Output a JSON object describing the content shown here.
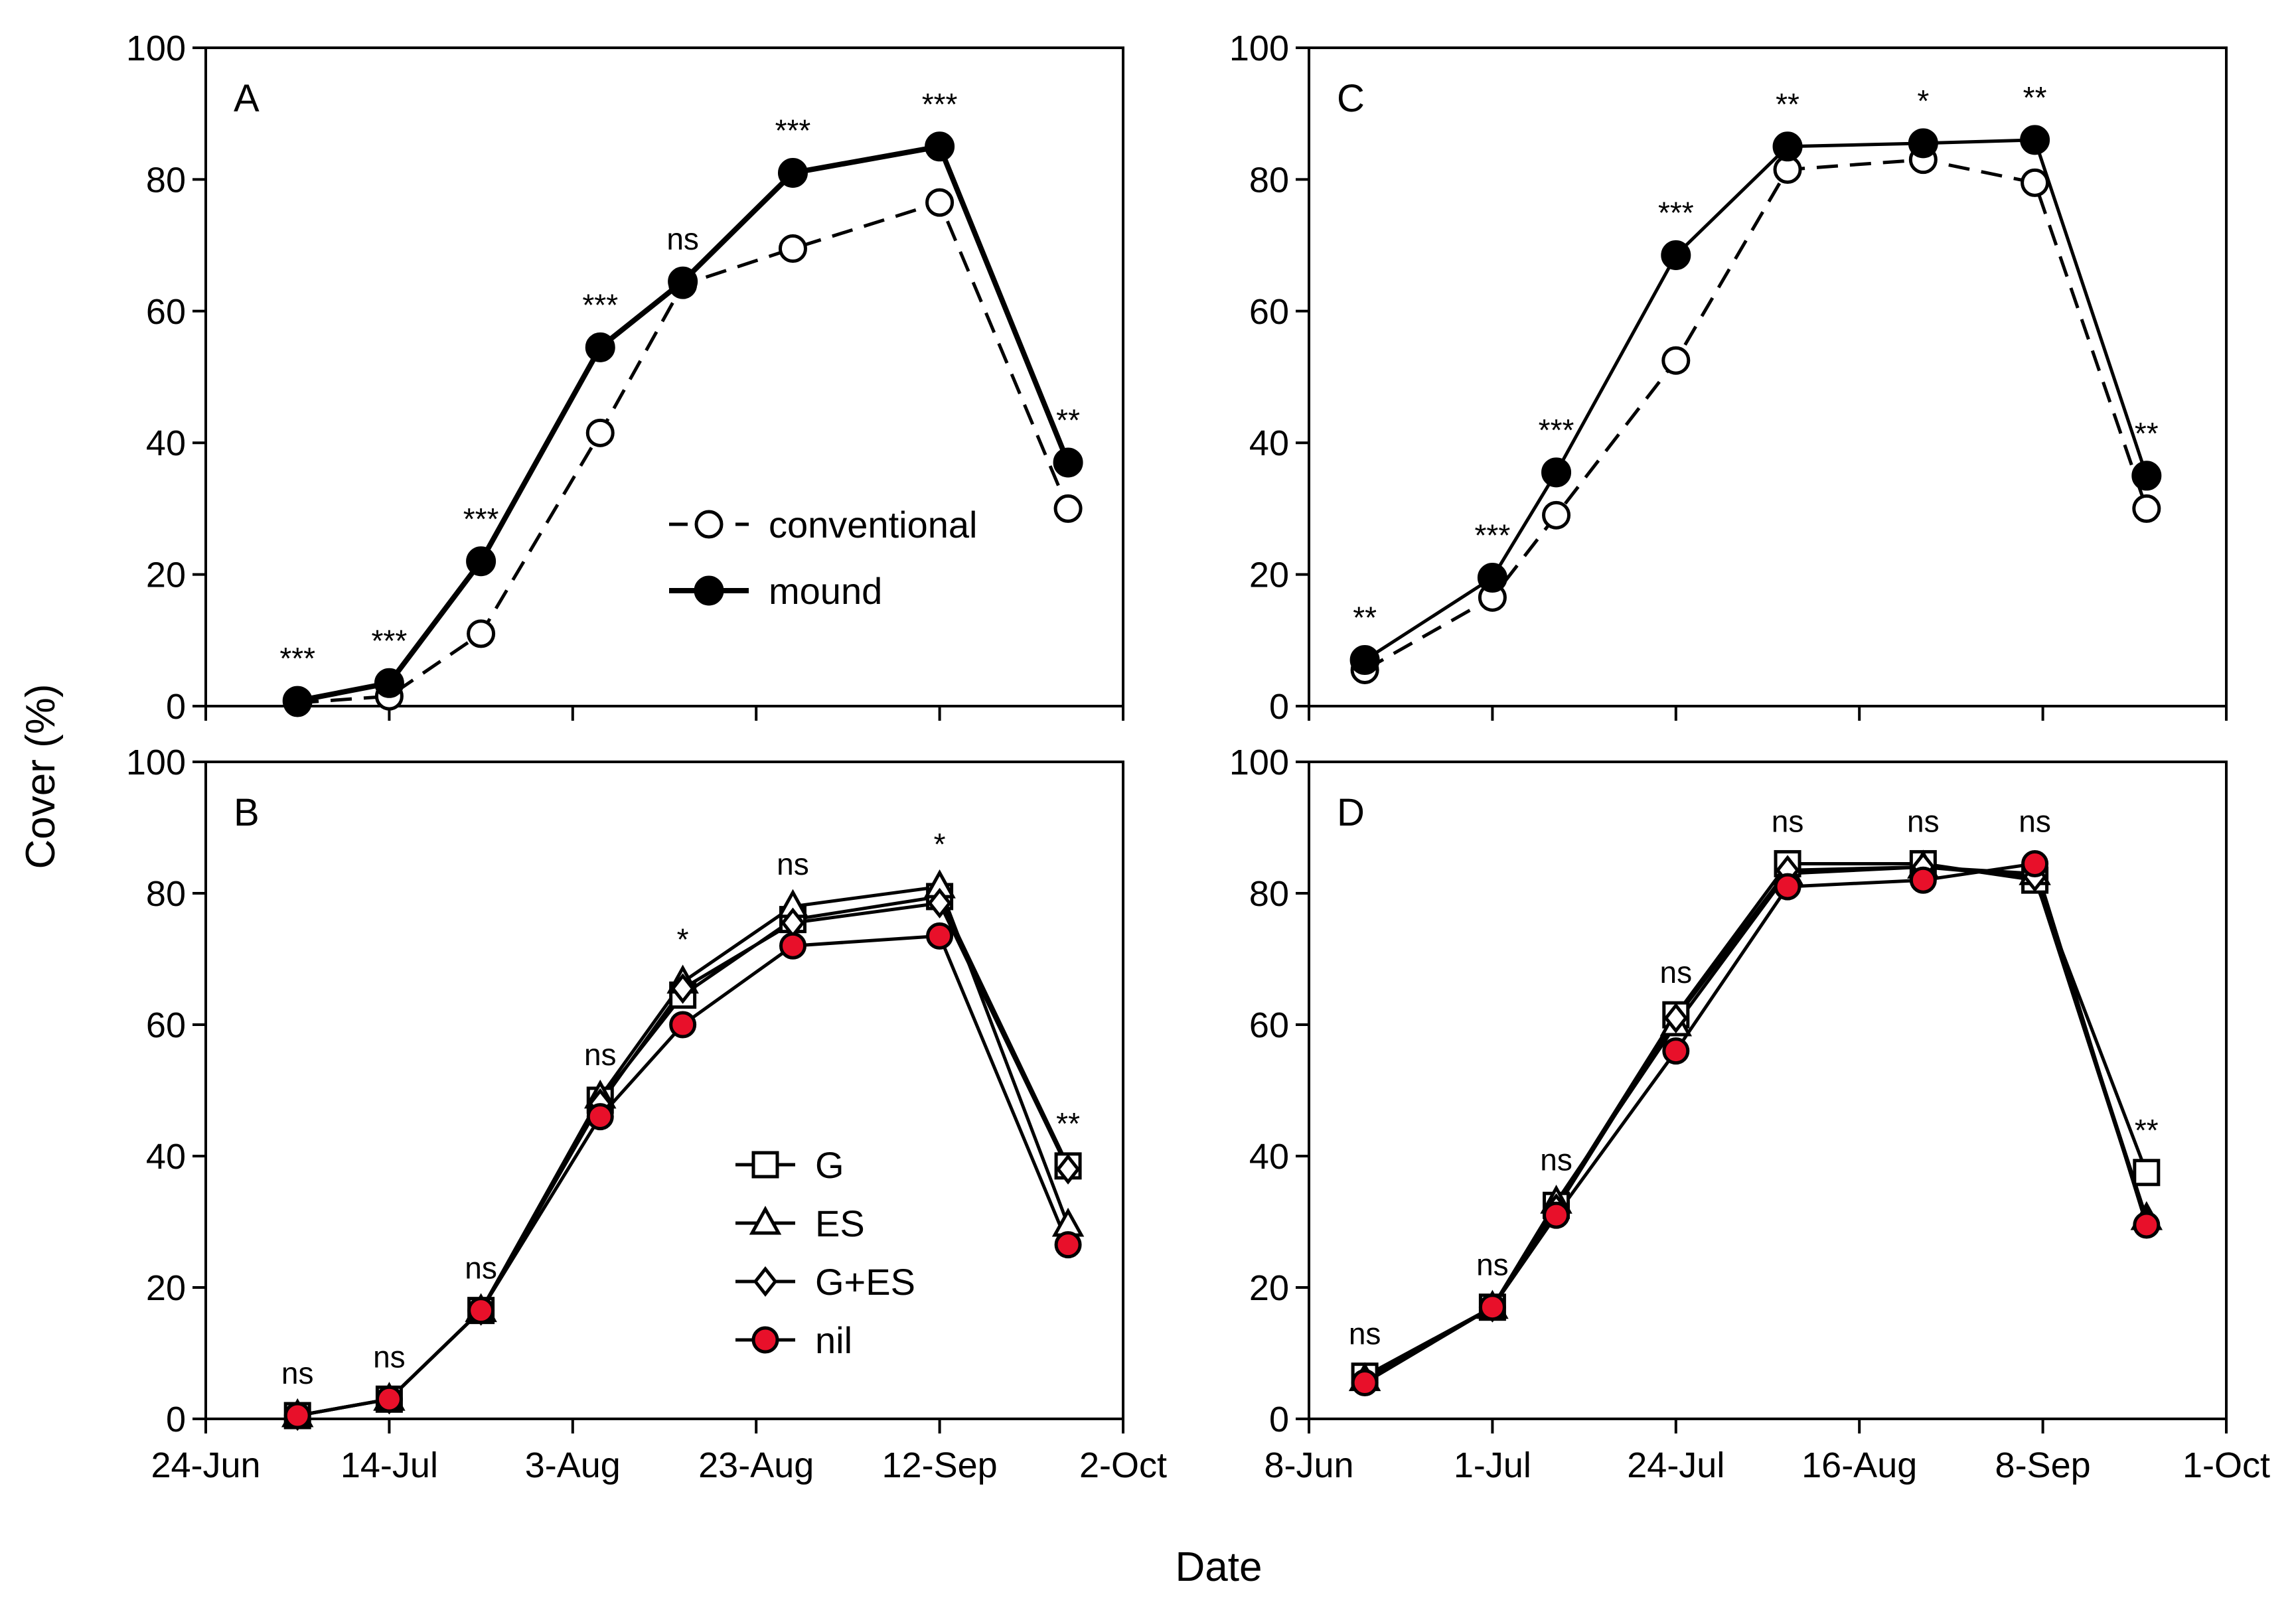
{
  "figure": {
    "ylabel": "Cover (%)",
    "xlabel": "Date"
  },
  "chart_data": [
    {
      "panel": "A",
      "type": "line",
      "ylim": [
        0,
        100
      ],
      "yticks": [
        0,
        20,
        40,
        60,
        80,
        100
      ],
      "xdomain": [
        "2021-06-24",
        "2021-10-02"
      ],
      "xticks": [
        "24-Jun",
        "14-Jul",
        "3-Aug",
        "23-Aug",
        "12-Sep",
        "2-Oct"
      ],
      "x": [
        "2021-07-04",
        "2021-07-14",
        "2021-07-24",
        "2021-08-06",
        "2021-08-15",
        "2021-08-27",
        "2021-09-12",
        "2021-09-26"
      ],
      "significance": [
        "***",
        "***",
        "***",
        "***",
        "ns",
        "***",
        "***",
        "**"
      ],
      "series": [
        {
          "name": "conventional",
          "marker": "circle-open",
          "line": "dashed",
          "values": [
            0.5,
            1.5,
            11,
            41.5,
            64,
            69.5,
            76.5,
            30
          ]
        },
        {
          "name": "mound",
          "marker": "circle-filled",
          "line": "solid-thick",
          "values": [
            0.8,
            3.5,
            22,
            54.5,
            64.5,
            81,
            85,
            37
          ]
        }
      ],
      "legend": {
        "position": "center-right"
      }
    },
    {
      "panel": "B",
      "type": "line",
      "ylim": [
        0,
        100
      ],
      "yticks": [
        0,
        20,
        40,
        60,
        80,
        100
      ],
      "xdomain": [
        "2021-06-24",
        "2021-10-02"
      ],
      "xticks": [
        "24-Jun",
        "14-Jul",
        "3-Aug",
        "23-Aug",
        "12-Sep",
        "2-Oct"
      ],
      "x": [
        "2021-07-04",
        "2021-07-14",
        "2021-07-24",
        "2021-08-06",
        "2021-08-15",
        "2021-08-27",
        "2021-09-12",
        "2021-09-26"
      ],
      "significance": [
        "ns",
        "ns",
        "ns",
        "ns",
        "*",
        "ns",
        "*",
        "**"
      ],
      "series": [
        {
          "name": "G",
          "marker": "square-open",
          "values": [
            0.5,
            3,
            16.5,
            48.5,
            64.5,
            76,
            79.5,
            38.5
          ]
        },
        {
          "name": "ES",
          "marker": "triangle-open",
          "values": [
            0.5,
            3,
            16.5,
            49,
            66.5,
            78,
            81,
            29.5
          ]
        },
        {
          "name": "G+ES",
          "marker": "diamond-open",
          "values": [
            0.5,
            3,
            16.5,
            48,
            65.5,
            75.5,
            78.5,
            38
          ]
        },
        {
          "name": "nil",
          "marker": "circle-red",
          "values": [
            0.5,
            3,
            16.5,
            46,
            60,
            72,
            73.5,
            26.5
          ]
        }
      ],
      "legend": {
        "position": "bottom-center"
      }
    },
    {
      "panel": "C",
      "type": "line",
      "ylim": [
        0,
        100
      ],
      "yticks": [
        0,
        20,
        40,
        60,
        80,
        100
      ],
      "xdomain": [
        "2021-06-08",
        "2021-10-01"
      ],
      "xticks": [
        "8-Jun",
        "1-Jul",
        "24-Jul",
        "16-Aug",
        "8-Sep",
        "1-Oct"
      ],
      "x": [
        "2021-06-15",
        "2021-07-01",
        "2021-07-09",
        "2021-07-24",
        "2021-08-07",
        "2021-08-24",
        "2021-09-07",
        "2021-09-21"
      ],
      "significance": [
        "**",
        "***",
        "***",
        "***",
        "**",
        "*",
        "**",
        "**"
      ],
      "series": [
        {
          "name": "conventional",
          "marker": "circle-open",
          "line": "dashed",
          "values": [
            5.5,
            16.5,
            29,
            52.5,
            81.5,
            83,
            79.5,
            30
          ]
        },
        {
          "name": "mound",
          "marker": "circle-filled",
          "line": "solid",
          "values": [
            7,
            19.5,
            35.5,
            68.5,
            85,
            85.5,
            86,
            35
          ]
        }
      ]
    },
    {
      "panel": "D",
      "type": "line",
      "ylim": [
        0,
        100
      ],
      "yticks": [
        0,
        20,
        40,
        60,
        80,
        100
      ],
      "xdomain": [
        "2021-06-08",
        "2021-10-01"
      ],
      "xticks": [
        "8-Jun",
        "1-Jul",
        "24-Jul",
        "16-Aug",
        "8-Sep",
        "1-Oct"
      ],
      "x": [
        "2021-06-15",
        "2021-07-01",
        "2021-07-09",
        "2021-07-24",
        "2021-08-07",
        "2021-08-24",
        "2021-09-07",
        "2021-09-21"
      ],
      "significance": [
        "ns",
        "ns",
        "ns",
        "ns",
        "ns",
        "ns",
        "ns",
        "**"
      ],
      "series": [
        {
          "name": "G",
          "marker": "square-open",
          "values": [
            6.5,
            17,
            32.5,
            61.5,
            84.5,
            84.5,
            82,
            37.5
          ]
        },
        {
          "name": "ES",
          "marker": "triangle-open",
          "values": [
            6,
            17,
            33,
            60,
            83,
            84,
            83,
            30.5
          ]
        },
        {
          "name": "G+ES",
          "marker": "diamond-open",
          "values": [
            6,
            17,
            32,
            61,
            83.5,
            84,
            82.5,
            30
          ]
        },
        {
          "name": "nil",
          "marker": "circle-red",
          "values": [
            5.5,
            17,
            31,
            56,
            81,
            82,
            84.5,
            29.5
          ]
        }
      ]
    }
  ]
}
